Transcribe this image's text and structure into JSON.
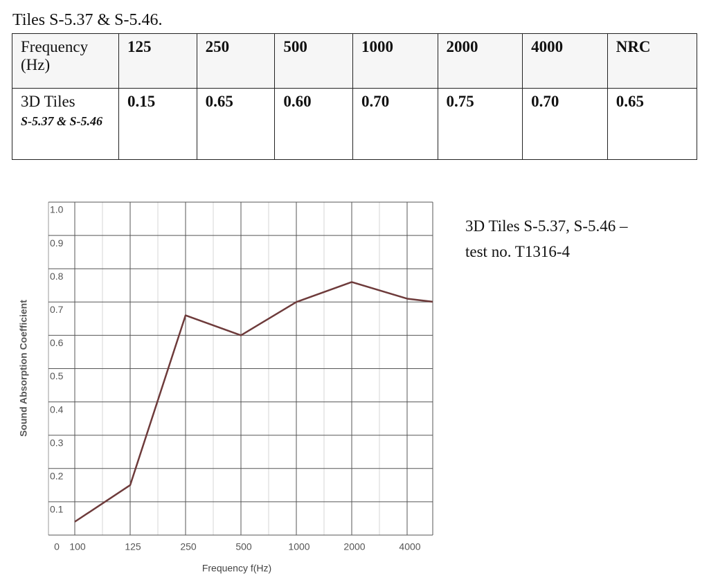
{
  "title": "Tiles S-5.37 & S-5.46.",
  "table": {
    "header": [
      "Frequency (Hz)",
      "125",
      "250",
      "500",
      "1000",
      "2000",
      "4000",
      "NRC"
    ],
    "rows": [
      {
        "label": "3D Tiles",
        "sublabel": "S-5.37 & S-5.46",
        "values": [
          "0.15",
          "0.65",
          "0.60",
          "0.70",
          "0.75",
          "0.70",
          "0.65"
        ]
      }
    ]
  },
  "chart_data": {
    "type": "line",
    "x_label": "Frequency f(Hz)",
    "y_label": "Sound Absorption Coefficient",
    "annotation": [
      "3D Tiles S-5.37, S-5.46 –",
      "test no. T1316-4"
    ],
    "categories": [
      "100",
      "125",
      "250",
      "500",
      "1000",
      "2000",
      "4000",
      null
    ],
    "values": [
      0.04,
      0.15,
      0.66,
      0.6,
      0.7,
      0.76,
      0.71,
      0.69
    ],
    "color": "#6e3b3b",
    "ylim": [
      0,
      1
    ],
    "yticks": [
      0,
      0.1,
      0.2,
      0.3,
      0.4,
      0.5,
      0.6,
      0.7,
      0.8,
      0.9,
      {
        "value": 1,
        "label": "1.0"
      }
    ],
    "grid": true
  }
}
